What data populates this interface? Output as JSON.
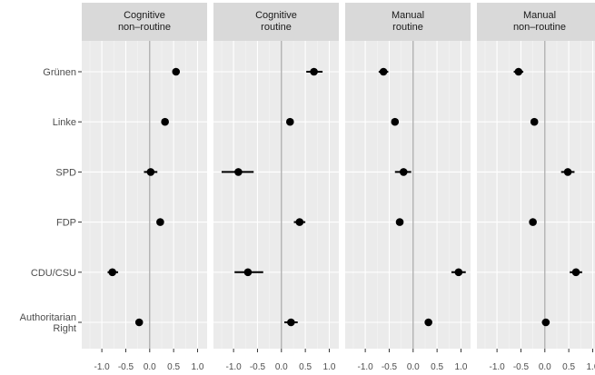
{
  "chart_data": {
    "type": "scatter",
    "subtype": "faceted coefficient plot with confidence intervals",
    "grid": true,
    "categories": [
      "Grünen",
      "Linke",
      "SPD",
      "FDP",
      "CDU/CSU",
      "Authoritarian Right"
    ],
    "x_ticks": [
      "-1.0",
      "-0.5",
      "0.0",
      "0.5",
      "1.0"
    ],
    "xlim": [
      -1.42,
      1.2
    ],
    "panels": [
      {
        "title_lines": [
          "Cognitive",
          "non–routine"
        ],
        "points": [
          {
            "category": "Grünen",
            "value": 0.55,
            "low": 0.5,
            "high": 0.6
          },
          {
            "category": "Linke",
            "value": 0.32,
            "low": 0.27,
            "high": 0.37
          },
          {
            "category": "SPD",
            "value": 0.02,
            "low": -0.12,
            "high": 0.16
          },
          {
            "category": "FDP",
            "value": 0.22,
            "low": 0.17,
            "high": 0.27
          },
          {
            "category": "CDU/CSU",
            "value": -0.78,
            "low": -0.88,
            "high": -0.66
          },
          {
            "category": "Authoritarian Right",
            "value": -0.22,
            "low": -0.27,
            "high": -0.17
          }
        ]
      },
      {
        "title_lines": [
          "Cognitive",
          "routine"
        ],
        "points": [
          {
            "category": "Grünen",
            "value": 0.68,
            "low": 0.52,
            "high": 0.86
          },
          {
            "category": "Linke",
            "value": 0.18,
            "low": 0.12,
            "high": 0.24
          },
          {
            "category": "SPD",
            "value": -0.9,
            "low": -1.25,
            "high": -0.58
          },
          {
            "category": "FDP",
            "value": 0.38,
            "low": 0.26,
            "high": 0.5
          },
          {
            "category": "CDU/CSU",
            "value": -0.7,
            "low": -0.98,
            "high": -0.38
          },
          {
            "category": "Authoritarian Right",
            "value": 0.2,
            "low": 0.06,
            "high": 0.34
          }
        ]
      },
      {
        "title_lines": [
          "Manual",
          "routine"
        ],
        "points": [
          {
            "category": "Grünen",
            "value": -0.62,
            "low": -0.72,
            "high": -0.52
          },
          {
            "category": "Linke",
            "value": -0.38,
            "low": -0.43,
            "high": -0.33
          },
          {
            "category": "SPD",
            "value": -0.2,
            "low": -0.38,
            "high": -0.04
          },
          {
            "category": "FDP",
            "value": -0.28,
            "low": -0.33,
            "high": -0.23
          },
          {
            "category": "CDU/CSU",
            "value": 0.95,
            "low": 0.8,
            "high": 1.1
          },
          {
            "category": "Authoritarian Right",
            "value": 0.32,
            "low": 0.27,
            "high": 0.37
          }
        ]
      },
      {
        "title_lines": [
          "Manual",
          "non–routine"
        ],
        "points": [
          {
            "category": "Grünen",
            "value": -0.55,
            "low": -0.65,
            "high": -0.45
          },
          {
            "category": "Linke",
            "value": -0.22,
            "low": -0.27,
            "high": -0.17
          },
          {
            "category": "SPD",
            "value": 0.48,
            "low": 0.34,
            "high": 0.62
          },
          {
            "category": "FDP",
            "value": -0.25,
            "low": -0.3,
            "high": -0.2
          },
          {
            "category": "CDU/CSU",
            "value": 0.65,
            "low": 0.52,
            "high": 0.78
          },
          {
            "category": "Authoritarian Right",
            "value": 0.02,
            "low": -0.06,
            "high": 0.1
          }
        ]
      }
    ]
  },
  "colors": {
    "panel_background": "#ebebeb",
    "strip_background": "#d9d9d9",
    "grid_major": "#ffffff",
    "grid_minor": "#f5f5f5",
    "zero_line": "#a6a6a6",
    "point": "#000000",
    "axis_text": "#4d4d4d",
    "strip_text": "#1a1a1a"
  }
}
